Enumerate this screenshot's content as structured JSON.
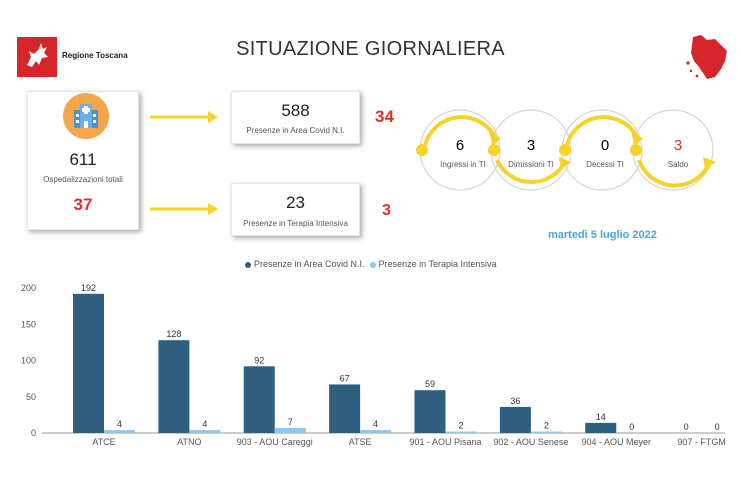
{
  "header": {
    "logo_text": "Regione Toscana",
    "title": "SITUAZIONE GIORNALIERA"
  },
  "summary": {
    "total_value": "611",
    "total_label": "Ospedalizzazioni totali",
    "total_delta": "37",
    "covid_value": "588",
    "covid_label": "Presenze in Area Covid N.I.",
    "covid_delta": "34",
    "ti_value": "23",
    "ti_label": "Presenze in Terapia Intensiva",
    "ti_delta": "3"
  },
  "flow": [
    {
      "value": "6",
      "label": "Ingressi in TI",
      "color": "#333333"
    },
    {
      "value": "3",
      "label": "Dimissioni TI",
      "color": "#333333"
    },
    {
      "value": "0",
      "label": "Decessi TI",
      "color": "#333333"
    },
    {
      "value": "3",
      "label": "Saldo",
      "color": "#e0302a"
    }
  ],
  "date": "martedì 5 luglio 2022",
  "colors": {
    "series_covid": "#2e5f80",
    "series_ti": "#8cc7ec",
    "accent_red": "#e0302a",
    "arrow_yellow": "#f5d327",
    "date_blue": "#4ba6d9"
  },
  "legend": {
    "covid": "Presenze in Area Covid N.I.",
    "ti": "Presenze in Terapia Intensiva"
  },
  "chart_data": {
    "type": "bar",
    "categories": [
      "ATCE",
      "ATNO",
      "903 - AOU Careggi",
      "ATSE",
      "901 - AOU Pisana",
      "902 - AOU Senese",
      "904 - AOU Meyer",
      "907 - FTGM"
    ],
    "series": [
      {
        "name": "Presenze in Area Covid N.I.",
        "values": [
          192,
          128,
          92,
          67,
          59,
          36,
          14,
          0
        ]
      },
      {
        "name": "Presenze in Terapia Intensiva",
        "values": [
          4,
          4,
          7,
          4,
          2,
          2,
          0,
          0
        ]
      }
    ],
    "yticks": [
      0,
      50,
      100,
      150,
      200
    ],
    "ylim": [
      0,
      200
    ],
    "legend_position": "top-center",
    "grid": false
  }
}
